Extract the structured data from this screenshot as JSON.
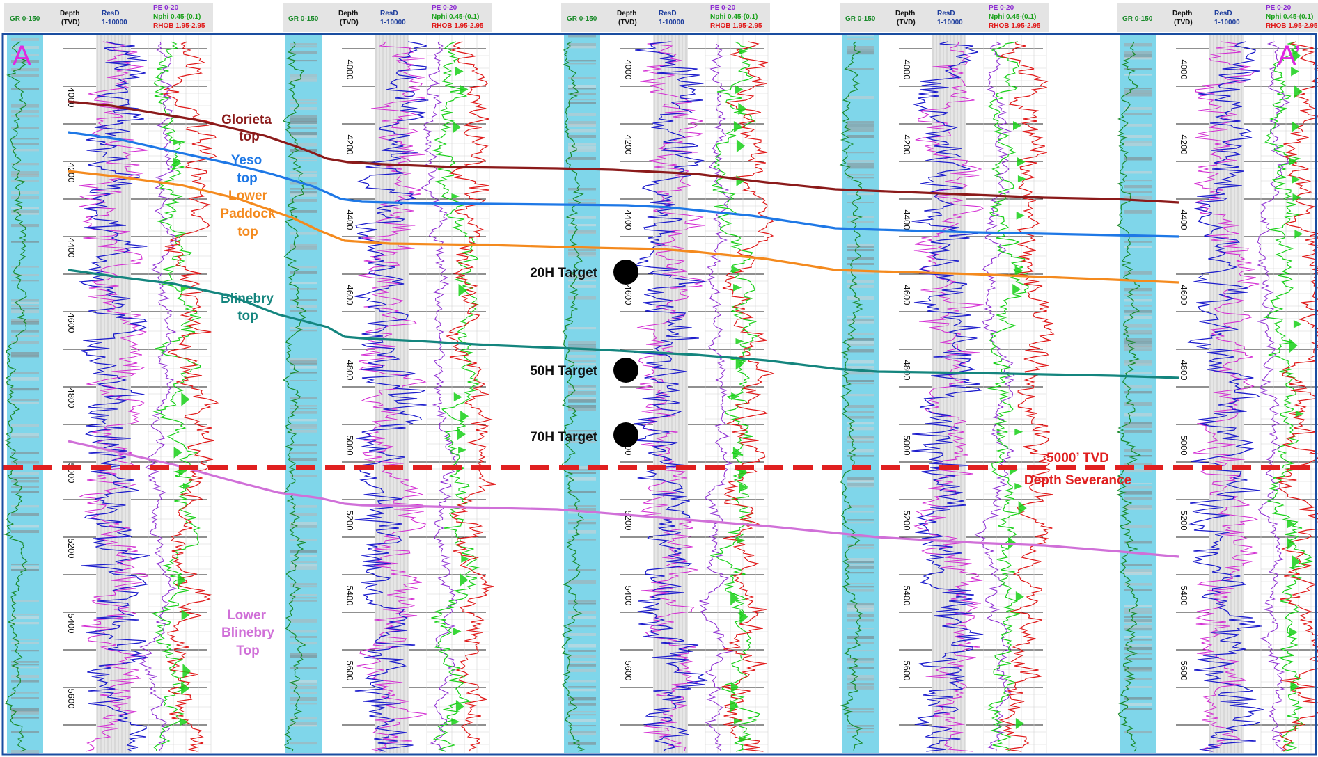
{
  "section": {
    "left_label": "A",
    "right_label": "A’",
    "track_headers": {
      "gr": "GR 0-150",
      "depth_line1": "Depth",
      "depth_line2": "(TVD)",
      "resd_line1": "ResD",
      "resd_line2": "1-10000",
      "pe": "PE 0-20",
      "nphi": "Nphi 0.45-(0.1)",
      "rhob": "RHOB 1.95-2.95"
    }
  },
  "depth_ticks": {
    "well_1": [
      "4000",
      "4200",
      "4400",
      "4600",
      "4800",
      "5000",
      "5200",
      "5400",
      "5600"
    ],
    "well_2": [
      "4000",
      "4200",
      "4400",
      "4600",
      "4800",
      "5000",
      "5200",
      "5400",
      "5600"
    ],
    "well_3": [
      "4000",
      "4200",
      "4400",
      "4600",
      "4800",
      "5000",
      "5200",
      "5400",
      "5600"
    ],
    "well_4": [
      "4000",
      "4200",
      "4400",
      "4600",
      "4800",
      "5000",
      "5200",
      "5400",
      "5600"
    ],
    "well_5": [
      "4000",
      "4200",
      "4400",
      "4600",
      "4800",
      "5000",
      "5200",
      "5400",
      "5600"
    ]
  },
  "formation_tops": [
    {
      "name_line1": "Glorieta",
      "name_line2": "top",
      "color": "#8b1a1a"
    },
    {
      "name_line1": "Yeso",
      "name_line2": "top",
      "color": "#1e78e6"
    },
    {
      "name_line1": "Lower",
      "name_line2": "Paddock",
      "name_line3": "top",
      "color": "#f48a1e"
    },
    {
      "name_line1": "Blinebry",
      "name_line2": "top",
      "color": "#14857e"
    },
    {
      "name_line1": "Lower",
      "name_line2": "Blinebry",
      "name_line3": "Top",
      "color": "#d070d8"
    }
  ],
  "targets": [
    {
      "label": "20H Target"
    },
    {
      "label": "50H Target"
    },
    {
      "label": "70H Target"
    }
  ],
  "severance": {
    "line1": "5000’ TVD",
    "line2": "Depth Severance",
    "color": "#e02020"
  },
  "colors": {
    "gr_fill": "#7fd6ea",
    "gr_curve": "#1a8a2a",
    "resd": "#1c1ccc",
    "resd2": "#d22ad2",
    "pe": "#8c2ad2",
    "nphi": "#18d018",
    "rhob": "#e01818",
    "label_left": "#e028e0",
    "frame": "#1a4da0"
  }
}
